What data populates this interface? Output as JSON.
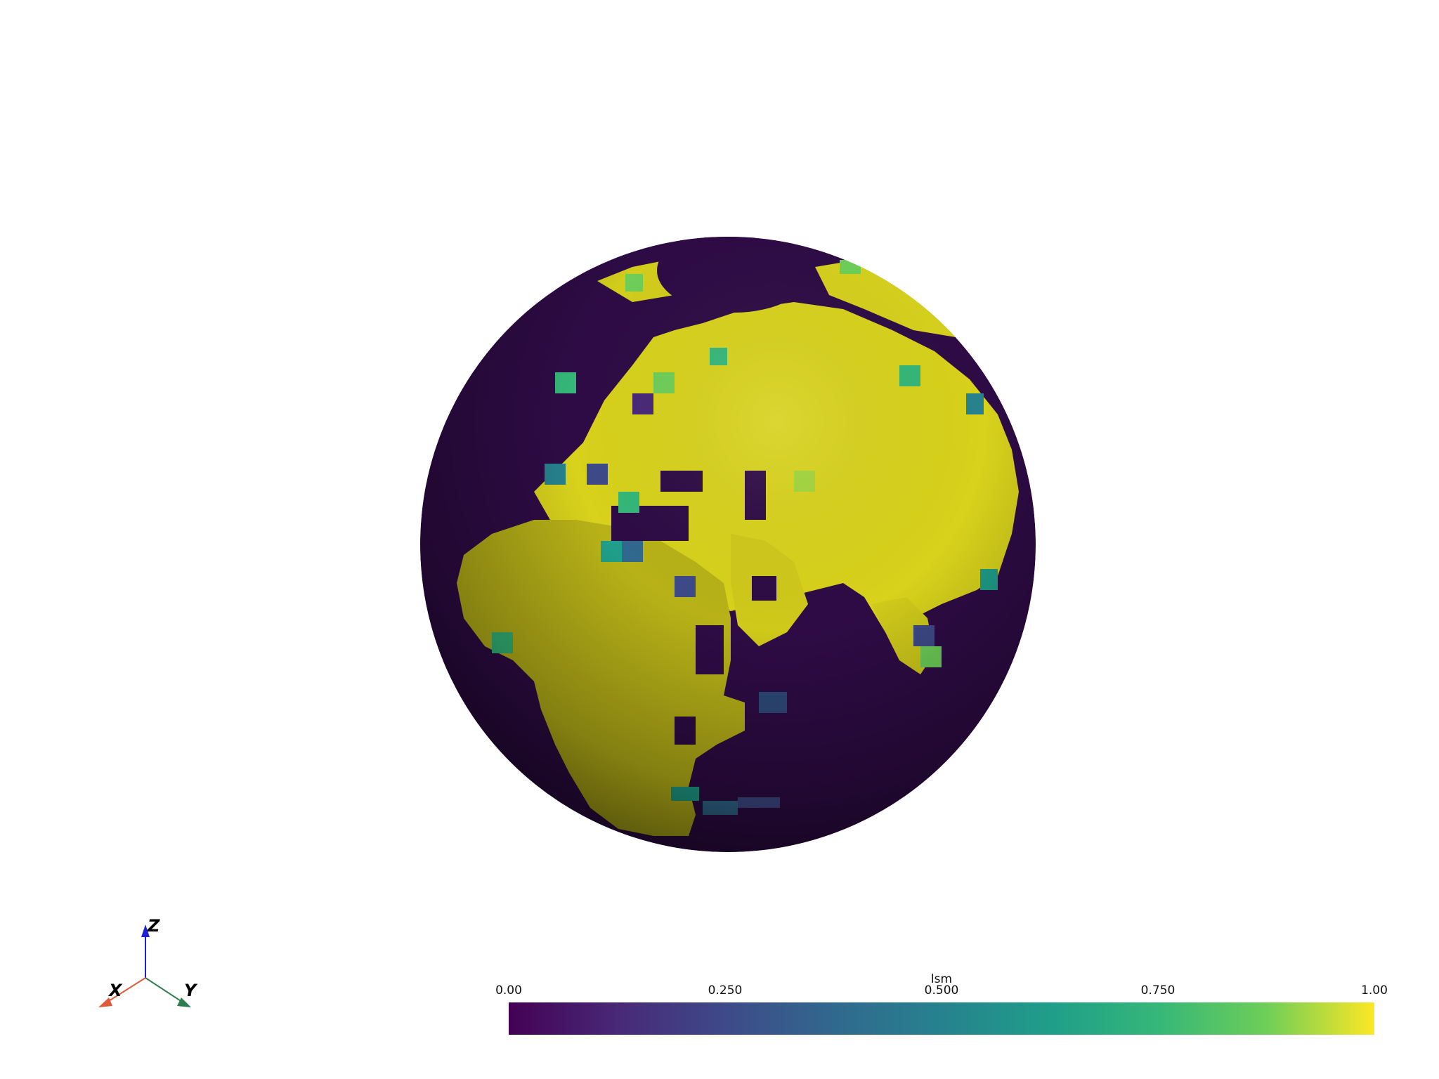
{
  "scene": {
    "background": "#ffffff",
    "field_name": "lsm",
    "land_color": "#d9d41e",
    "ocean_color": "#2a0a3c"
  },
  "axes_widget": {
    "x_label": "X",
    "y_label": "Y",
    "z_label": "Z",
    "x_color": "#e05a3a",
    "y_color": "#2e7d4f",
    "z_color": "#1f1fd6"
  },
  "colorbar": {
    "title": "lsm",
    "colormap": "viridis",
    "range": [
      0.0,
      1.0
    ],
    "ticks": [
      {
        "value": 0.0,
        "label": "0.00"
      },
      {
        "value": 0.25,
        "label": "0.250"
      },
      {
        "value": 0.5,
        "label": "0.500"
      },
      {
        "value": 0.75,
        "label": "0.750"
      },
      {
        "value": 1.0,
        "label": "1.00"
      }
    ]
  }
}
